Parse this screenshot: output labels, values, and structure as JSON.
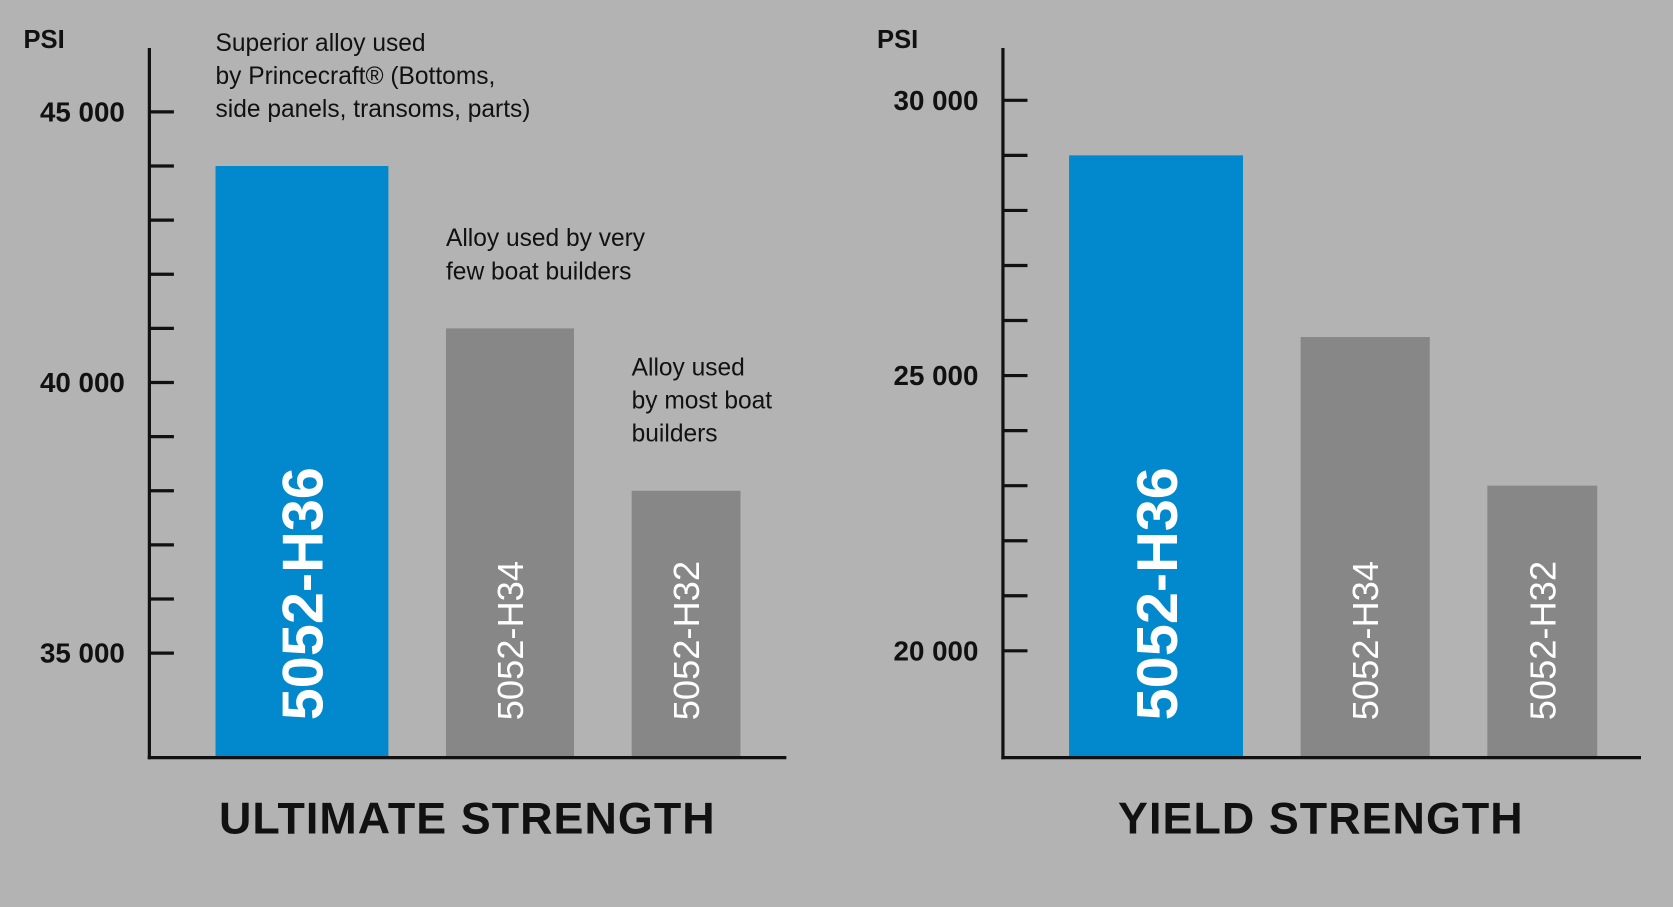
{
  "chart_data": [
    {
      "type": "bar",
      "title": "ULTIMATE STRENGTH",
      "y_label": "PSI",
      "categories": [
        "5052-H36",
        "5052-H34",
        "5052-H32"
      ],
      "values": [
        44000,
        41000,
        38000
      ],
      "colors": [
        "#0288cc",
        "#878787",
        "#878787"
      ],
      "annotations": [
        [
          "Superior alloy used",
          "by Princecraft® (Bottoms,",
          "side panels, transoms, parts)"
        ],
        [
          "Alloy used by very",
          "few boat builders"
        ],
        [
          "Alloy used",
          "by most boat",
          "builders"
        ]
      ],
      "ylim": [
        33070,
        46180
      ],
      "yticks": [
        {
          "value": 35000,
          "label": "35 000"
        },
        {
          "value": 40000,
          "label": "40 000"
        },
        {
          "value": 45000,
          "label": "45 000"
        }
      ],
      "minor_yticks": [
        36000,
        37000,
        38000,
        39000,
        41000,
        42000,
        43000,
        44000
      ]
    },
    {
      "type": "bar",
      "title": "YIELD STRENGTH",
      "y_label": "PSI",
      "categories": [
        "5052-H36",
        "5052-H34",
        "5052-H32"
      ],
      "values": [
        29000,
        25700,
        23000
      ],
      "colors": [
        "#0288cc",
        "#878787",
        "#878787"
      ],
      "ylim": [
        18060,
        30950
      ],
      "yticks": [
        {
          "value": 20000,
          "label": "20 000"
        },
        {
          "value": 25000,
          "label": "25 000"
        },
        {
          "value": 30000,
          "label": "30 000"
        }
      ],
      "minor_yticks": [
        21000,
        22000,
        23000,
        24000,
        26000,
        27000,
        28000,
        29000
      ]
    }
  ]
}
